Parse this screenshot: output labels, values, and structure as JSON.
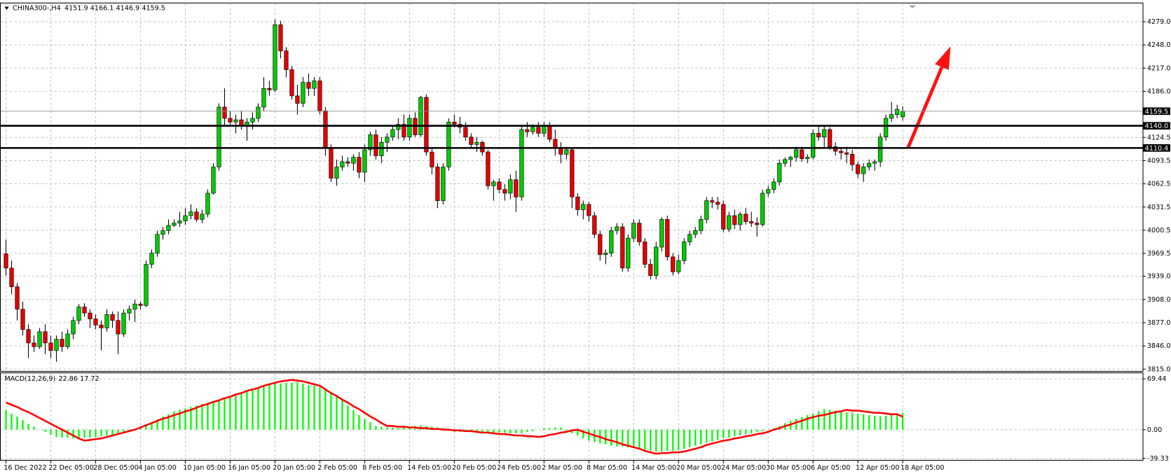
{
  "chart_data": [
    {
      "type": "candlestick",
      "title": "CHINA300-,H4",
      "categories": [
        "16 Dec 2022",
        null,
        null,
        null,
        null,
        null,
        null,
        null,
        "22 Dec 05:00",
        null,
        null,
        null,
        null,
        null,
        null,
        null,
        "28 Dec 05:00",
        null,
        null,
        null,
        null,
        null,
        null,
        null,
        "4 Jan 05:00",
        null,
        null,
        null,
        null,
        null,
        null,
        null,
        "10 Jan 05:00",
        null,
        null,
        null,
        null,
        null,
        null,
        null,
        "16 Jan 05:00",
        null,
        null,
        null,
        null,
        null,
        null,
        null,
        "20 Jan 05:00",
        null,
        null,
        null,
        null,
        null,
        null,
        null,
        "2 Feb 05:00",
        null,
        null,
        null,
        null,
        null,
        null,
        null,
        "8 Feb 05:00",
        null,
        null,
        null,
        null,
        null,
        null,
        null,
        "14 Feb 05:00",
        null,
        null,
        null,
        null,
        null,
        null,
        null,
        "20 Feb 05:00",
        null,
        null,
        null,
        null,
        null,
        null,
        null,
        "24 Feb 05:00",
        null,
        null,
        null,
        null,
        null,
        null,
        null,
        "2 Mar 05:00",
        null,
        null,
        null,
        null,
        null,
        null,
        null,
        "8 Mar 05:00",
        null,
        null,
        null,
        null,
        null,
        null,
        null,
        "14 Mar 05:00",
        null,
        null,
        null,
        null,
        null,
        null,
        null,
        "20 Mar 05:00",
        null,
        null,
        null,
        null,
        null,
        null,
        null,
        "24 Mar 05:00",
        null,
        null,
        null,
        null,
        null,
        null,
        null,
        "30 Mar 05:00",
        null,
        null,
        null,
        null,
        null,
        null,
        null,
        "6 Apr 05:00",
        null,
        null,
        null,
        null,
        null,
        null,
        null,
        "12 Apr 05:00",
        null,
        null,
        null,
        null,
        null,
        null,
        null,
        "18 Apr 05:00"
      ],
      "open": [
        3969,
        3950,
        3925,
        3895,
        3868,
        3850,
        3845,
        3865,
        3850,
        3840,
        3855,
        3845,
        3862,
        3880,
        3898,
        3890,
        3882,
        3874,
        3870,
        3888,
        3880,
        3862,
        3890,
        3895,
        3902,
        3900,
        3955,
        3970,
        3995,
        4000,
        4007,
        4010,
        4013,
        4020,
        4025,
        4015,
        4022,
        4050,
        4085,
        4165,
        4150,
        4145,
        4148,
        4140,
        4145,
        4150,
        4165,
        4190,
        4188,
        4275,
        4240,
        4215,
        4180,
        4170,
        4198,
        4190,
        4200,
        4160,
        4110,
        4070,
        4085,
        4092,
        4090,
        4098,
        4078,
        4108,
        4128,
        4100,
        4118,
        4125,
        4135,
        4142,
        4125,
        4150,
        4128,
        4178,
        4105,
        4085,
        4040,
        4085,
        4145,
        4142,
        4138,
        4125,
        4115,
        4118,
        4105,
        4060,
        4065,
        4055,
        4050,
        4068,
        4045,
        4135,
        4132,
        4138,
        4130,
        4140,
        4122,
        4110,
        4102,
        4108,
        4045,
        4028,
        4035,
        4020,
        3995,
        3968,
        3970,
        4000,
        4005,
        3950,
        3990,
        4010,
        3985,
        3955,
        3940,
        3978,
        4015,
        3965,
        3945,
        3960,
        3985,
        3995,
        4000,
        4015,
        4040,
        4038,
        4035,
        4002,
        4020,
        4008,
        4022,
        4012,
        4010,
        4008,
        4050,
        4055,
        4065,
        4090,
        4095,
        4098,
        4108,
        4096,
        4098,
        4130,
        4125,
        4135,
        4112,
        4106,
        4104,
        4102,
        4088,
        4076,
        4085,
        4090,
        4092,
        4125,
        4150,
        4155,
        4151.9
      ],
      "high": [
        3988,
        3960,
        3930,
        3905,
        3875,
        3860,
        3870,
        3875,
        3860,
        3860,
        3865,
        3868,
        3885,
        3902,
        3903,
        3895,
        3888,
        3880,
        3895,
        3892,
        3892,
        3895,
        3900,
        3908,
        3905,
        3960,
        3975,
        4000,
        4005,
        4015,
        4015,
        4025,
        4030,
        4035,
        4030,
        4028,
        4055,
        4090,
        4170,
        4190,
        4160,
        4155,
        4160,
        4150,
        4158,
        4170,
        4205,
        4200,
        4282,
        4280,
        4245,
        4220,
        4195,
        4205,
        4210,
        4205,
        4205,
        4165,
        4115,
        4095,
        4100,
        4098,
        4102,
        4105,
        4115,
        4132,
        4135,
        4125,
        4130,
        4140,
        4150,
        4155,
        4155,
        4158,
        4180,
        4182,
        4110,
        4090,
        4090,
        4150,
        4155,
        4152,
        4145,
        4130,
        4125,
        4120,
        4108,
        4068,
        4070,
        4062,
        4075,
        4080,
        4140,
        4145,
        4142,
        4145,
        4145,
        4145,
        4135,
        4118,
        4112,
        4110,
        4050,
        4040,
        4038,
        4025,
        4000,
        3975,
        4005,
        4010,
        4010,
        3995,
        4015,
        4015,
        3990,
        3962,
        3985,
        4018,
        4020,
        3970,
        3968,
        3990,
        4000,
        4005,
        4020,
        4045,
        4045,
        4045,
        4040,
        4025,
        4028,
        4025,
        4030,
        4025,
        4018,
        4055,
        4060,
        4070,
        4095,
        4098,
        4100,
        4112,
        4112,
        4102,
        4135,
        4140,
        4140,
        4138,
        4118,
        4110,
        4112,
        4108,
        4092,
        4090,
        4095,
        4095,
        4130,
        4155,
        4172,
        4168,
        4166.1
      ],
      "low": [
        3940,
        3915,
        3880,
        3860,
        3830,
        3838,
        3842,
        3835,
        3830,
        3825,
        3838,
        3842,
        3855,
        3875,
        3885,
        3870,
        3868,
        3840,
        3865,
        3870,
        3835,
        3858,
        3880,
        3878,
        3895,
        3898,
        3950,
        3965,
        3988,
        3995,
        4005,
        4005,
        4008,
        4015,
        4012,
        4010,
        4018,
        4048,
        4080,
        4140,
        4140,
        4130,
        4135,
        4120,
        4135,
        4145,
        4160,
        4180,
        4185,
        4230,
        4205,
        4175,
        4155,
        4165,
        4180,
        4180,
        4155,
        4100,
        4065,
        4060,
        4080,
        4085,
        4080,
        4070,
        4065,
        4100,
        4095,
        4090,
        4105,
        4120,
        4122,
        4120,
        4120,
        4125,
        4125,
        4100,
        4075,
        4030,
        4035,
        4080,
        4138,
        4130,
        4120,
        4110,
        4105,
        4100,
        4055,
        4040,
        4050,
        4040,
        4042,
        4025,
        4040,
        4125,
        4128,
        4125,
        4125,
        4118,
        4100,
        4090,
        4095,
        4030,
        4020,
        4015,
        4012,
        3990,
        3960,
        3955,
        3965,
        3995,
        3945,
        3945,
        3985,
        3980,
        3950,
        3935,
        3935,
        3972,
        3960,
        3940,
        3942,
        3955,
        3980,
        3990,
        3995,
        4010,
        4030,
        4028,
        3998,
        3998,
        4002,
        4000,
        4008,
        4005,
        3992,
        4005,
        4045,
        4050,
        4060,
        4085,
        4085,
        4092,
        4092,
        4090,
        4095,
        4120,
        4110,
        4108,
        4100,
        4095,
        4090,
        4080,
        4070,
        4065,
        4080,
        4080,
        4085,
        4120,
        4145,
        4150,
        4146.9
      ],
      "close": [
        3950,
        3925,
        3895,
        3868,
        3850,
        3845,
        3865,
        3850,
        3840,
        3855,
        3845,
        3862,
        3880,
        3898,
        3890,
        3882,
        3874,
        3870,
        3888,
        3880,
        3862,
        3890,
        3895,
        3902,
        3900,
        3955,
        3970,
        3995,
        4000,
        4007,
        4010,
        4013,
        4020,
        4025,
        4015,
        4022,
        4050,
        4085,
        4165,
        4150,
        4145,
        4148,
        4140,
        4145,
        4150,
        4165,
        4190,
        4188,
        4275,
        4240,
        4215,
        4180,
        4170,
        4198,
        4190,
        4200,
        4160,
        4110,
        4070,
        4085,
        4092,
        4090,
        4098,
        4078,
        4108,
        4128,
        4100,
        4118,
        4125,
        4135,
        4142,
        4125,
        4150,
        4128,
        4178,
        4105,
        4085,
        4040,
        4085,
        4145,
        4142,
        4138,
        4125,
        4115,
        4118,
        4105,
        4060,
        4065,
        4055,
        4050,
        4068,
        4045,
        4135,
        4132,
        4138,
        4130,
        4140,
        4122,
        4110,
        4102,
        4108,
        4045,
        4028,
        4035,
        4020,
        3995,
        3968,
        3970,
        4000,
        4005,
        3950,
        3990,
        4010,
        3985,
        3955,
        3940,
        3978,
        4015,
        3965,
        3945,
        3960,
        3985,
        3995,
        4000,
        4015,
        4040,
        4038,
        4035,
        4002,
        4020,
        4008,
        4022,
        4012,
        4010,
        4008,
        4050,
        4055,
        4065,
        4090,
        4095,
        4098,
        4108,
        4096,
        4098,
        4130,
        4125,
        4135,
        4112,
        4106,
        4104,
        4102,
        4088,
        4076,
        4085,
        4090,
        4092,
        4125,
        4150,
        4155,
        4162,
        4159.5
      ],
      "up_color": "#00cc00",
      "down_color": "#e60000",
      "ylim": [
        3812,
        4304
      ],
      "yticks": [
        {
          "value": 4279,
          "label": "4279.0"
        },
        {
          "value": 4248,
          "label": "4248.0"
        },
        {
          "value": 4217,
          "label": "4217.0"
        },
        {
          "value": 4186,
          "label": "4186.0"
        },
        4124.5,
        4093.5,
        4062.5,
        4031.5,
        4000.5,
        3969.5,
        {
          "value": 3939,
          "label": "3939.0"
        },
        {
          "value": 3908,
          "label": "3908.0"
        },
        {
          "value": 3877,
          "label": "3877.0"
        },
        {
          "value": 3846,
          "label": "3846.0"
        },
        {
          "value": 3815,
          "label": "3815.0"
        }
      ],
      "levels": [
        {
          "value": 4140,
          "label": "4140.0"
        },
        4110.4
      ],
      "grid": true
    },
    {
      "type": "macd",
      "title": "MACD(12,26,9)",
      "histogram": {
        "color": "#00ff00",
        "values": [
          27,
          22,
          18,
          13,
          8,
          4,
          0,
          -3,
          -7,
          -10,
          -11,
          -11,
          -12,
          -12,
          -11,
          -11,
          -10,
          -9,
          -8,
          -7,
          -6,
          -4,
          -2,
          0,
          3,
          7,
          10,
          14,
          18,
          21,
          25,
          27,
          29,
          31,
          33,
          35,
          37,
          39,
          41,
          43,
          45,
          48,
          50,
          53,
          55,
          57,
          59,
          61,
          63,
          63,
          64,
          64,
          65,
          63,
          61,
          60,
          58,
          54,
          49,
          45,
          40,
          33,
          27,
          20,
          15,
          10,
          5,
          4,
          3,
          3,
          2,
          3,
          4,
          5,
          6,
          5,
          4,
          3,
          2,
          0,
          -3,
          -3,
          -2,
          -2,
          -2,
          -3,
          -3,
          -4,
          -4,
          -4,
          -5,
          -5,
          -5,
          -3,
          -2,
          0,
          2,
          2,
          3,
          3,
          -1,
          -5,
          -8,
          -12,
          -15,
          -17,
          -19,
          -20,
          -22,
          -23,
          -23,
          -24,
          -25,
          -26,
          -28,
          -29,
          -30,
          -30,
          -29,
          -29,
          -28,
          -26,
          -24,
          -22,
          -20,
          -18,
          -16,
          -14,
          -12,
          -11,
          -9,
          -8,
          -6,
          -5,
          -3,
          -2,
          0,
          2,
          5,
          9,
          12,
          15,
          17,
          20,
          22,
          25,
          28,
          27,
          26,
          25,
          24,
          23,
          22,
          21,
          20,
          19,
          18,
          19,
          20,
          21,
          22.86
        ]
      },
      "signal": {
        "color": "#ff0000",
        "values": [
          37,
          34,
          31,
          27,
          24,
          20,
          16,
          12,
          8,
          4,
          0,
          -4,
          -8,
          -12,
          -15,
          -14,
          -13,
          -12,
          -10,
          -8,
          -6,
          -4,
          -2,
          0,
          3,
          6,
          9,
          12,
          15,
          17,
          20,
          22,
          25,
          27,
          30,
          33,
          35,
          38,
          40,
          43,
          45,
          48,
          50,
          53,
          55,
          57,
          60,
          62,
          64,
          66,
          67,
          68,
          67,
          66,
          64,
          62,
          60,
          55,
          50,
          46,
          41,
          37,
          32,
          28,
          23,
          18,
          14,
          9,
          5,
          5,
          4,
          4,
          3,
          3,
          2,
          2,
          1,
          1,
          0,
          0,
          -1,
          -1,
          -2,
          -2,
          -3,
          -4,
          -4,
          -5,
          -6,
          -6,
          -7,
          -8,
          -8,
          -9,
          -9,
          -10,
          -9,
          -7,
          -6,
          -4,
          -3,
          -1,
          0,
          -3,
          -5,
          -8,
          -10,
          -13,
          -15,
          -17,
          -20,
          -22,
          -24,
          -26,
          -29,
          -31,
          -33,
          -32,
          -32,
          -31,
          -31,
          -30,
          -28,
          -26,
          -24,
          -21,
          -19,
          -17,
          -15,
          -14,
          -12,
          -11,
          -9,
          -8,
          -6,
          -5,
          -3,
          0,
          2,
          5,
          7,
          10,
          12,
          15,
          17,
          19,
          20,
          22,
          24,
          25,
          27,
          26,
          26,
          25,
          24,
          23,
          23,
          22,
          21,
          21,
          17.72
        ]
      },
      "ylim": [
        -41.9,
        77.6
      ],
      "yticks": [
        69.44,
        {
          "value": 0,
          "label": "0.00"
        },
        -39.33
      ]
    }
  ]
}
